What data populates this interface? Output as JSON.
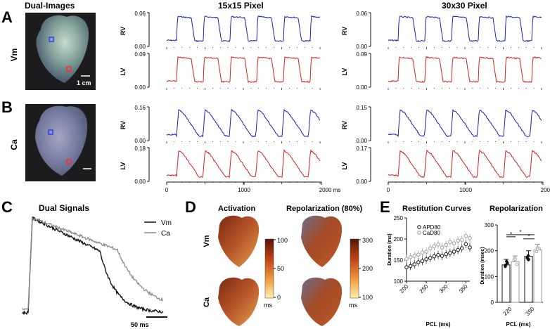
{
  "panel_letters": {
    "a": "A",
    "b": "B",
    "c": "C",
    "d": "D",
    "e": "E"
  },
  "panel_a": {
    "column_title_images": "Dual-Images",
    "column_title_15": "15x15 Pixel",
    "column_title_30": "30x30 Pixel",
    "row_label": "Vm",
    "scale_label": "1 cm",
    "colors": {
      "rv": "#1a1fb8",
      "lv": "#d42020"
    }
  },
  "panel_b": {
    "row_label": "Ca"
  },
  "panel_c": {
    "title": "Dual Signals",
    "legend": [
      {
        "label": "Vm",
        "color": "#111111"
      },
      {
        "label": "Ca",
        "color": "#8a8a8a"
      }
    ],
    "scale_label": "50 ms"
  },
  "panel_d": {
    "title_activation": "Activation",
    "title_repolarization": "Repolarization (80%)",
    "row_vm": "Vm",
    "row_ca": "Ca",
    "colorbar_activation": {
      "ticks": [
        "100",
        "50",
        "0"
      ],
      "unit": "ms"
    },
    "colorbar_repol": {
      "ticks": [
        "300",
        "200",
        "100"
      ],
      "unit": "ms"
    }
  },
  "panel_e": {
    "title_restitution": "Restitution Curves",
    "title_repolarization": "Repolarization",
    "sig": "*",
    "colors": {
      "apd": "#111111",
      "cad": "#9a9a9a"
    }
  },
  "chart_data": [
    {
      "type": "line",
      "title": "15x15 Pixel",
      "panel": "A-Vm",
      "series": [
        {
          "name": "RV",
          "ylim": [
            0.0,
            0.06
          ],
          "yticks": [
            "0.06",
            "0.00"
          ],
          "color": "#1a1fb8"
        },
        {
          "name": "LV",
          "ylim": [
            0.0,
            0.09
          ],
          "yticks": [
            "0.09",
            "0.00"
          ],
          "color": "#d42020"
        }
      ]
    },
    {
      "type": "line",
      "title": "30x30 Pixel",
      "panel": "A-Vm",
      "series": [
        {
          "name": "RV",
          "ylim": [
            0.0,
            0.06
          ],
          "yticks": [
            "0.06",
            "0.00"
          ],
          "color": "#1a1fb8"
        },
        {
          "name": "LV",
          "ylim": [
            0.0,
            0.09
          ],
          "yticks": [
            "0.09",
            "0.00"
          ],
          "color": "#d42020"
        }
      ]
    },
    {
      "type": "line",
      "panel": "B-Ca-15",
      "xticks": [
        "0",
        "1000",
        "2000 ms"
      ],
      "series": [
        {
          "name": "RV",
          "ylim": [
            0.0,
            0.16
          ],
          "yticks": [
            "0.16",
            "0.00"
          ],
          "color": "#1a1fb8"
        },
        {
          "name": "LV",
          "ylim": [
            0.0,
            0.18
          ],
          "yticks": [
            "0.18",
            "0.00"
          ],
          "color": "#d42020"
        }
      ]
    },
    {
      "type": "line",
      "panel": "B-Ca-30",
      "xticks": [
        "0",
        "1000",
        "2000 ms"
      ],
      "series": [
        {
          "name": "RV",
          "ylim": [
            0.0,
            0.15
          ],
          "yticks": [
            "0.15",
            "0.00"
          ],
          "color": "#1a1fb8"
        },
        {
          "name": "LV",
          "ylim": [
            0.0,
            0.17
          ],
          "yticks": [
            "0.17",
            "0.00"
          ],
          "color": "#d42020"
        }
      ]
    },
    {
      "type": "scatter",
      "title": "Restitution Curves",
      "xlabel": "PCL (ms)",
      "ylabel": "Duration (ms)",
      "xlim": [
        200,
        360
      ],
      "ylim": [
        100,
        250
      ],
      "xticks": [
        "200",
        "250",
        "300",
        "350"
      ],
      "yticks": [
        "250",
        "200",
        "150",
        "100"
      ],
      "legend": [
        "APD80",
        "CaD80"
      ],
      "x": [
        200,
        210,
        220,
        230,
        240,
        250,
        260,
        270,
        280,
        290,
        300,
        310,
        320,
        330,
        340,
        350,
        360
      ],
      "series": [
        {
          "name": "APD80",
          "values": [
            133,
            136,
            140,
            145,
            148,
            152,
            155,
            159,
            162,
            160,
            164,
            167,
            170,
            174,
            178,
            188,
            180
          ]
        },
        {
          "name": "CaD80",
          "values": [
            153,
            157,
            160,
            163,
            168,
            170,
            178,
            183,
            187,
            180,
            186,
            193,
            190,
            196,
            198,
            207,
            202
          ]
        }
      ]
    },
    {
      "type": "bar",
      "title": "Repolarization",
      "xlabel": "PCL (ms)",
      "ylabel": "Duration (msec)",
      "ylim": [
        0,
        300
      ],
      "yticks": [
        "300",
        "200",
        "100",
        "0"
      ],
      "categories": [
        "220",
        "350"
      ],
      "series": [
        {
          "name": "APD80",
          "values": [
            145,
            178
          ]
        },
        {
          "name": "CaD80",
          "values": [
            158,
            203
          ]
        }
      ]
    }
  ]
}
